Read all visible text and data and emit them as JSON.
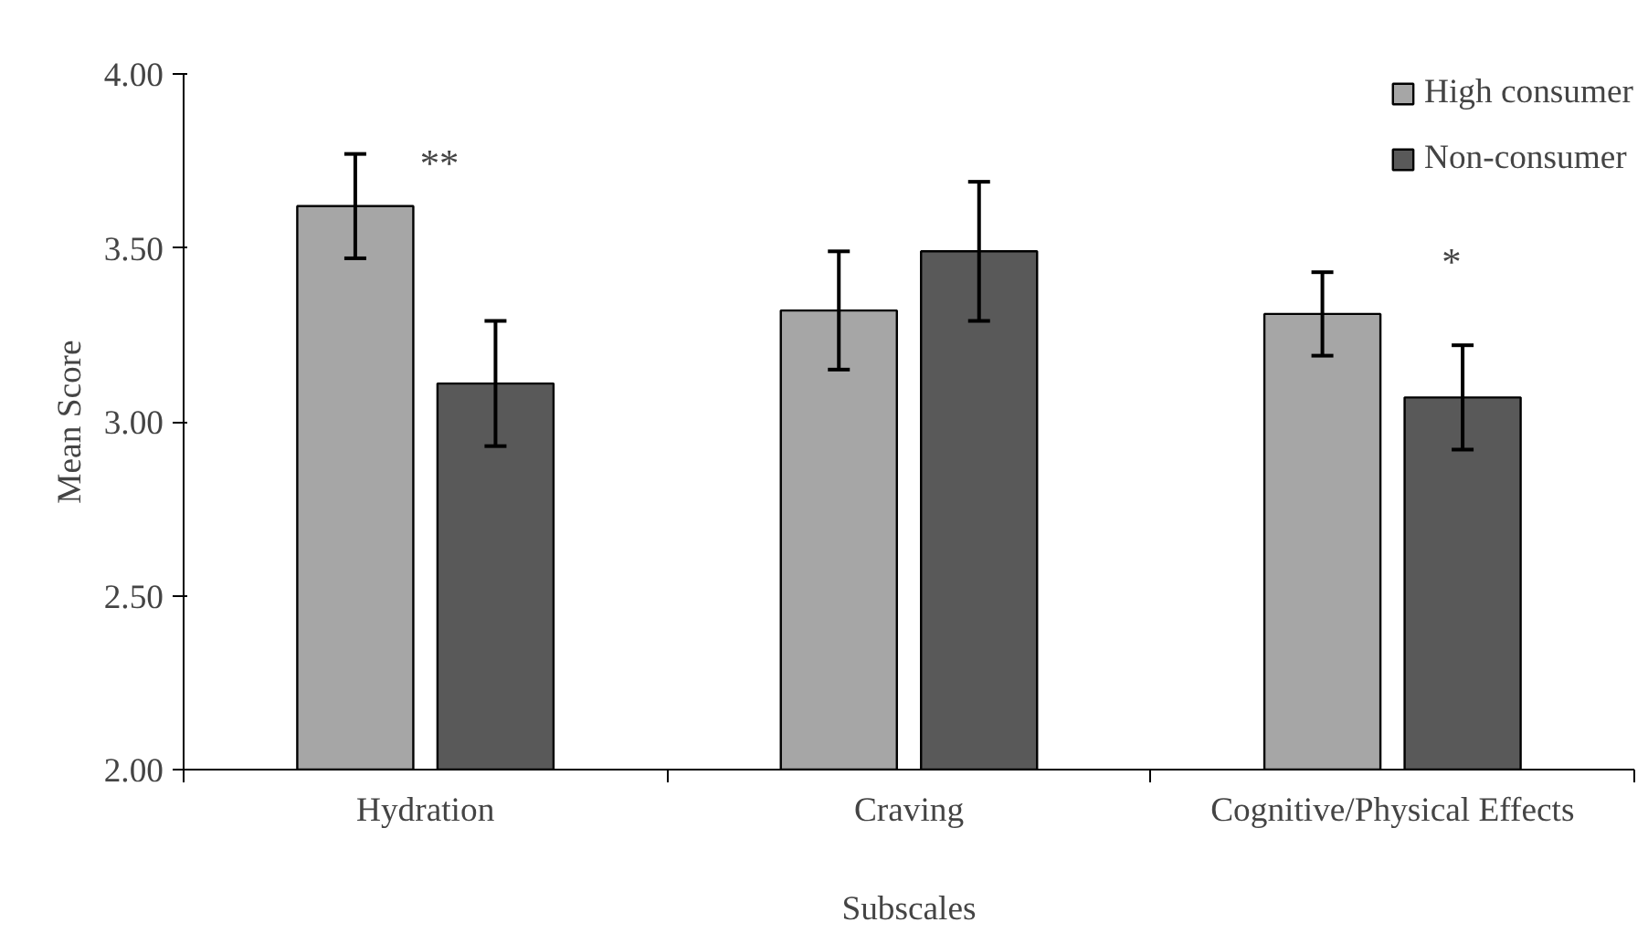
{
  "chart_data": {
    "type": "bar",
    "categories": [
      "Hydration",
      "Craving",
      "Cognitive/Physical Effects"
    ],
    "xlabel": "Subscales",
    "ylabel": "Mean Score",
    "series": [
      {
        "name": "High consumer",
        "color": "#a6a6a6",
        "values": [
          3.62,
          3.32,
          3.31
        ],
        "errors": [
          0.15,
          0.17,
          0.12
        ]
      },
      {
        "name": "Non-consumer",
        "color": "#595959",
        "values": [
          3.11,
          3.49,
          3.07
        ],
        "errors": [
          0.18,
          0.2,
          0.15
        ]
      }
    ],
    "ylim": [
      2.0,
      4.0
    ],
    "yticks": [
      {
        "value": 2.0,
        "label": "2.00"
      },
      {
        "value": 2.5,
        "label": "2.50"
      },
      {
        "value": 3.0,
        "label": "3.00"
      },
      {
        "value": 3.5,
        "label": "3.50"
      },
      {
        "value": 4.0,
        "label": "4.00"
      }
    ],
    "annotations": [
      "**",
      "*"
    ],
    "grid": false,
    "legend": "top right"
  }
}
